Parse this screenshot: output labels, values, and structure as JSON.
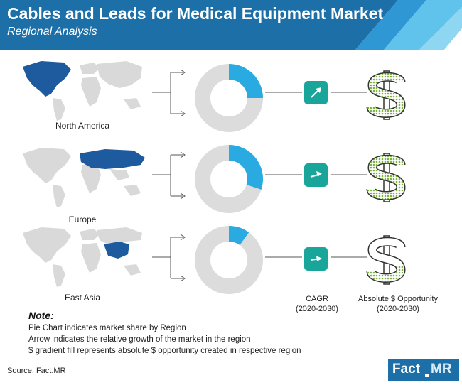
{
  "header": {
    "title": "Cables and Leads for Medical Equipment Market",
    "subtitle": "Regional Analysis",
    "colors": {
      "band": "#1d6fa8",
      "stripe_light": "#5fc3ec",
      "stripe_mid": "#2f97d3"
    }
  },
  "chart_data": {
    "type": "pie",
    "title": "",
    "donut_colors": {
      "share": "#29abe2",
      "rest": "#dcdcdc"
    },
    "regions": [
      {
        "name": "North America",
        "share": 0.25
      },
      {
        "name": "Europe",
        "share": 0.3
      },
      {
        "name": "East Asia",
        "share": 0.1
      }
    ]
  },
  "columns": {
    "cagr": {
      "label": "CAGR",
      "period": "(2020-2030)"
    },
    "opportunity": {
      "label": "Absolute $ Opportunity",
      "period": "(2020-2030)"
    }
  },
  "icons": {
    "arrow": "trend-arrow-icon",
    "dollar": "dollar-gradient-icon",
    "map": "world-map-icon"
  },
  "note": {
    "title": "Note:",
    "lines": [
      "Pie Chart indicates market share by Region",
      "Arrow indicates the relative growth of the market in the region",
      "$ gradient fill represents absolute $ opportunity created in respective region"
    ]
  },
  "source": "Source: Fact.MR",
  "logo": {
    "part1": "Fact",
    "part2": "MR"
  }
}
